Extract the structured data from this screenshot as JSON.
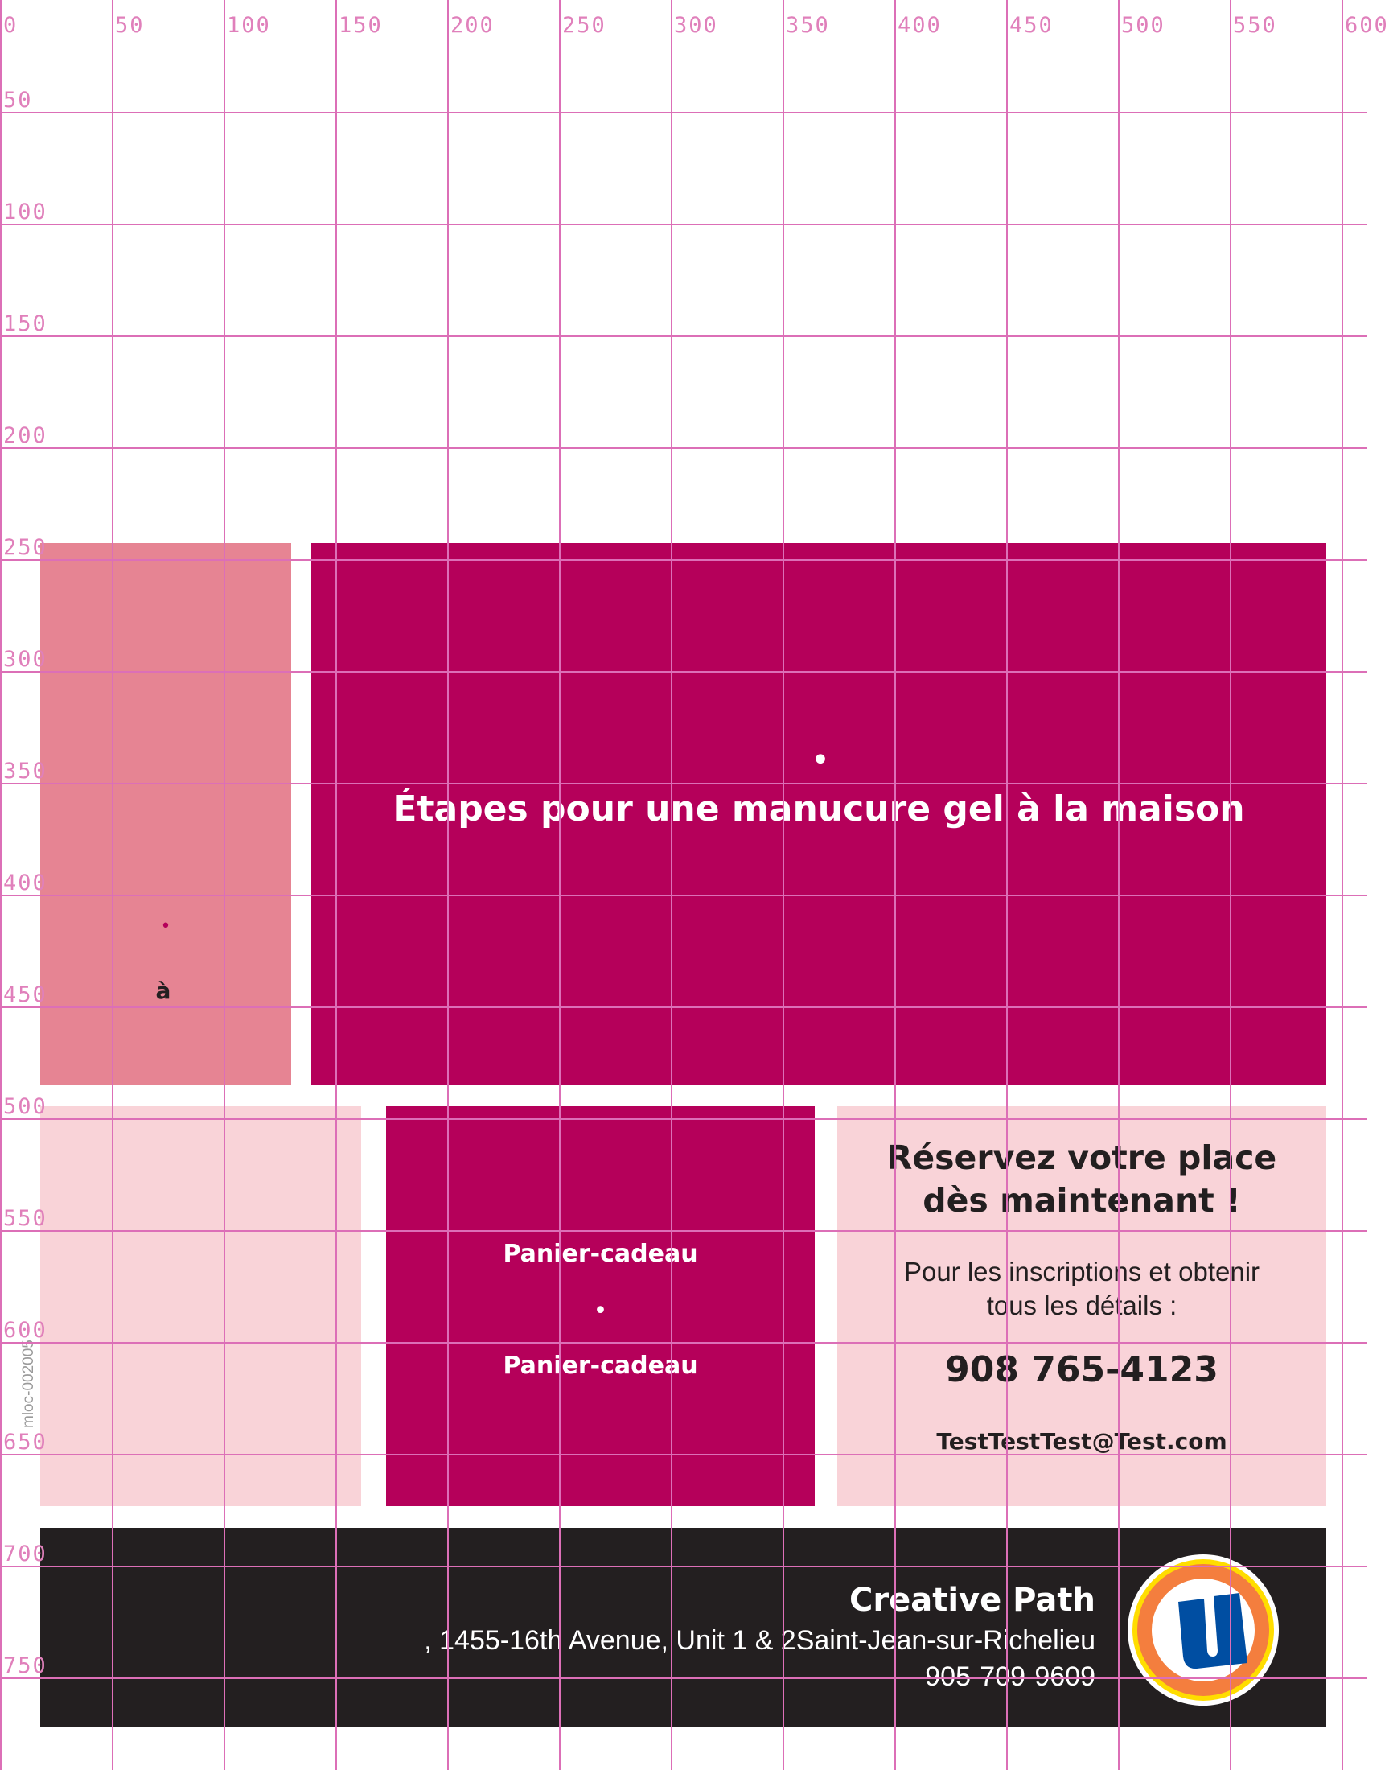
{
  "colors": {
    "pink": "#e68493",
    "magenta": "#b5005a",
    "light_pink": "#f9d3d8",
    "footer": "#231f20",
    "grid": "#dc6fb7"
  },
  "rulers": {
    "x_labels": [
      "0",
      "50",
      "100",
      "150",
      "200",
      "250",
      "300",
      "350",
      "400",
      "450",
      "500",
      "550",
      "600"
    ],
    "y_labels": [
      "50",
      "100",
      "150",
      "200",
      "250",
      "300",
      "350",
      "400",
      "450",
      "500",
      "550",
      "600",
      "650",
      "700",
      "750"
    ]
  },
  "side_panel": {
    "bullet": "•",
    "word": "à"
  },
  "hero": {
    "bullet": "•",
    "title": "Étapes pour une manucure gel à la maison"
  },
  "gift": {
    "label_top": "Panier-cadeau",
    "bullet": "•",
    "label_bottom": "Panier-cadeau"
  },
  "reserve": {
    "heading_line1": "Réservez votre place",
    "heading_line2": "dès maintenant !",
    "info_line1": "Pour les inscriptions et obtenir",
    "info_line2": "tous les détails :",
    "phone": "908 765-4123",
    "email": "TestTestTest@Test.com"
  },
  "footer": {
    "name": "Creative Path",
    "address": ", 1455-16th Avenue, Unit 1 & 2Saint-Jean-sur-Richelieu",
    "phone": "905-709-9609",
    "logo": {
      "icon": "uniprix-u-logo",
      "letter": "U"
    }
  },
  "code": "mloc-002005"
}
